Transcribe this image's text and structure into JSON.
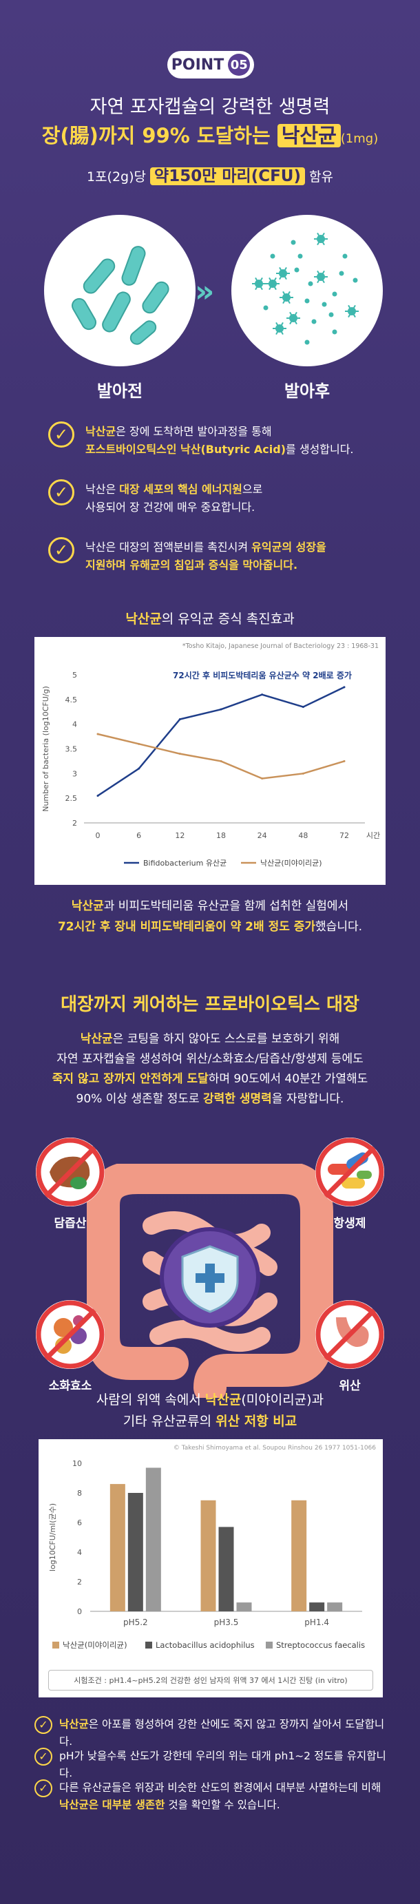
{
  "header": {
    "badge_word": "POINT",
    "badge_num": "05",
    "line1": "자연 포자캡슐의 강력한 생명력",
    "line2_pre": "장(腸)까지 99% 도달하는 ",
    "line2_hl": "낙산균",
    "line2_post": "(1mg)",
    "sub_pre": "1포(2g)당 ",
    "sub_hl": "약150만 마리(CFU)",
    "sub_post": " 함유"
  },
  "germination": {
    "before_label": "발아전",
    "after_label": "발아후"
  },
  "checks": [
    {
      "b1": "낙산균",
      "t1": "은 장에 도착하면 발아과정을 통해",
      "b2": "포스트바이오틱스인 낙산(Butyric Acid)",
      "t2": "를 생성합니다."
    },
    {
      "t1": "낙산은 ",
      "b1": "대장 세포의 핵심 에너지원",
      "t2": "으로",
      "t3": "사용되어 장 건강에 매우 중요합니다."
    },
    {
      "t1": "낙산은 대장의 점액분비를 촉진시켜 ",
      "b1": "유익균의 성장을",
      "b2": "지원하며 유해균의 침입과 증식을 막아줍니다."
    }
  ],
  "chart1_title": {
    "b": "낙산균",
    "t": "의 유익균 증식 촉진효과"
  },
  "chart1_source": "*Tosho Kitajo, Japanese Journal of Bacteriology 23 : 1968-31",
  "chart1_caption": {
    "l1b": "낙산균",
    "l1t": "과 비피도박테리움 유산균을 함께 섭취한 실험에서",
    "l2b": "72시간 후 장내 비피도박테리움이 약 2배 정도 증가",
    "l2t": "했습니다."
  },
  "probiotic": {
    "title": "대장까지 케어하는 프로바이오틱스 대장",
    "p1b": "낙산균",
    "p1t": "은 코팅을 하지 않아도 스스로를 보호하기 위해",
    "p2": "자연 포자캡슐을 생성하여 위산/소화효소/담즙산/항생제 등에도",
    "p3b": "죽지 않고 장까지 안전하게 도달",
    "p3t": "하며 90도에서 40분간 가열해도",
    "p4t": "90% 이상 생존할 정도로 ",
    "p4b": "강력한 생명력",
    "p4e": "을 자랑합니다.",
    "labels": {
      "bile": "담즙산",
      "antibiotic": "항생제",
      "enzyme": "소화효소",
      "acid": "위산"
    }
  },
  "chart2_title": {
    "l1t": "사람의 위액 속에서 ",
    "l1b": "낙산균",
    "l1e": "(미야이리균)과",
    "l2t": "기타 유산균류의 ",
    "l2b": "위산 저항 비교"
  },
  "chart2_source": "© Takeshi Shimoyama et al. Soupou Rinshou 26 1977 1051-1066",
  "chart2_cond": "시험조건 : pH1.4~pH5.2의 건강한 성인 남자의 위액 37 에서 1시간 진탕 (in vitro)",
  "bottom": [
    {
      "b": "낙산균",
      "t": "은 아포를 형성하여 강한 산에도 죽지 않고 장까지 살아서 도달합니다."
    },
    {
      "t": "pH가 낮을수록 산도가 강한데 우리의 위는 대개 ph1~2 정도를 유지합니다."
    },
    {
      "t1": "다른 유산균들은 위장과 비슷한 산도의 환경에서 대부분 사멸하는데 비해",
      "b": "낙산균은 대부분 생존한",
      "t2": " 것을 확인할 수 있습니다."
    }
  ],
  "colors": {
    "accent": "#ffd84a",
    "bg": "#3f3270",
    "blue": "#1f3e8a",
    "orange": "#c9925a",
    "tan": "#cfa06a",
    "dark": "#555555",
    "gray": "#9a9a9a"
  },
  "chart_data": [
    {
      "type": "line",
      "title": "",
      "annotation": "72시간 후 비피도박테리움 유산균수 약 2배로 증가",
      "ylabel": "Number of bacteria (log10CFU/g)",
      "xlabel": "시간",
      "categories": [
        "0",
        "6",
        "12",
        "18",
        "24",
        "48",
        "72"
      ],
      "ylim": [
        2,
        5
      ],
      "yticks": [
        "2",
        "2.5",
        "3",
        "3.5",
        "4",
        "4.5",
        "5"
      ],
      "series": [
        {
          "name": "Bifidobacterium 유산균",
          "color": "#1f3e8a",
          "values": [
            2.55,
            3.1,
            4.1,
            4.3,
            4.6,
            4.35,
            4.75
          ]
        },
        {
          "name": "낙산균(미야이리균)",
          "color": "#c9925a",
          "values": [
            3.8,
            3.6,
            3.4,
            3.25,
            2.9,
            3.0,
            3.25
          ]
        }
      ]
    },
    {
      "type": "bar",
      "title": "",
      "ylabel": "log10CFU/ml(균수)",
      "categories": [
        "pH5.2",
        "pH3.5",
        "pH1.4"
      ],
      "ylim": [
        0,
        10
      ],
      "yticks": [
        "0",
        "2",
        "4",
        "6",
        "8",
        "10"
      ],
      "series": [
        {
          "name": "낙산균(미야이리균)",
          "color": "#cfa06a",
          "values": [
            8.6,
            7.5,
            7.5
          ]
        },
        {
          "name": "Lactobacillus acidophilus",
          "color": "#555555",
          "values": [
            8.0,
            5.7,
            0.6
          ]
        },
        {
          "name": "Streptococcus faecalis",
          "color": "#9a9a9a",
          "values": [
            9.7,
            0.6,
            0.6
          ]
        }
      ]
    }
  ]
}
